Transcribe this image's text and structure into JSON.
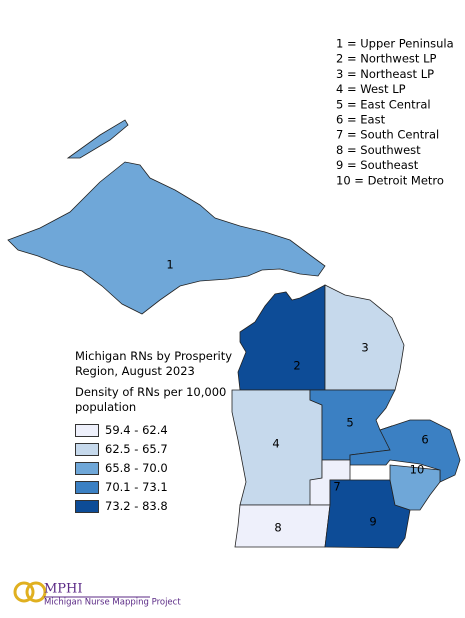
{
  "key": [
    "1 = Upper Peninsula",
    "2 = Northwest LP",
    "3 = Northeast LP",
    "4 = West LP",
    "5 = East Central",
    "6 = East",
    "7 = South Central",
    "8 = Southwest",
    "9 = Southeast",
    "10 = Detroit Metro"
  ],
  "legend": {
    "title": "Michigan RNs by Prosperity Region, August 2023",
    "subtitle": "Density of RNs per 10,000 population",
    "classes": [
      {
        "label": "59.4 - 62.4",
        "color": "#eef0fb"
      },
      {
        "label": "62.5 - 65.7",
        "color": "#c6d9ec"
      },
      {
        "label": "65.8 - 70.0",
        "color": "#6fa7d8"
      },
      {
        "label": "70.1 - 73.1",
        "color": "#3b80c3"
      },
      {
        "label": "73.2 - 83.8",
        "color": "#0d4c97"
      }
    ]
  },
  "regions": [
    {
      "label": "1",
      "color": "#6fa7d8"
    },
    {
      "label": "2",
      "color": "#0d4c97"
    },
    {
      "label": "3",
      "color": "#c6d9ec"
    },
    {
      "label": "4",
      "color": "#c6d9ec"
    },
    {
      "label": "5",
      "color": "#3b80c3"
    },
    {
      "label": "6",
      "color": "#3b80c3"
    },
    {
      "label": "7",
      "color": "#eef0fb"
    },
    {
      "label": "8",
      "color": "#eef0fb"
    },
    {
      "label": "9",
      "color": "#0d4c97"
    },
    {
      "label": "10",
      "color": "#6fa7d8"
    }
  ],
  "logo": {
    "name": "MPHI",
    "tagline": "Michigan Nurse Mapping Project"
  }
}
